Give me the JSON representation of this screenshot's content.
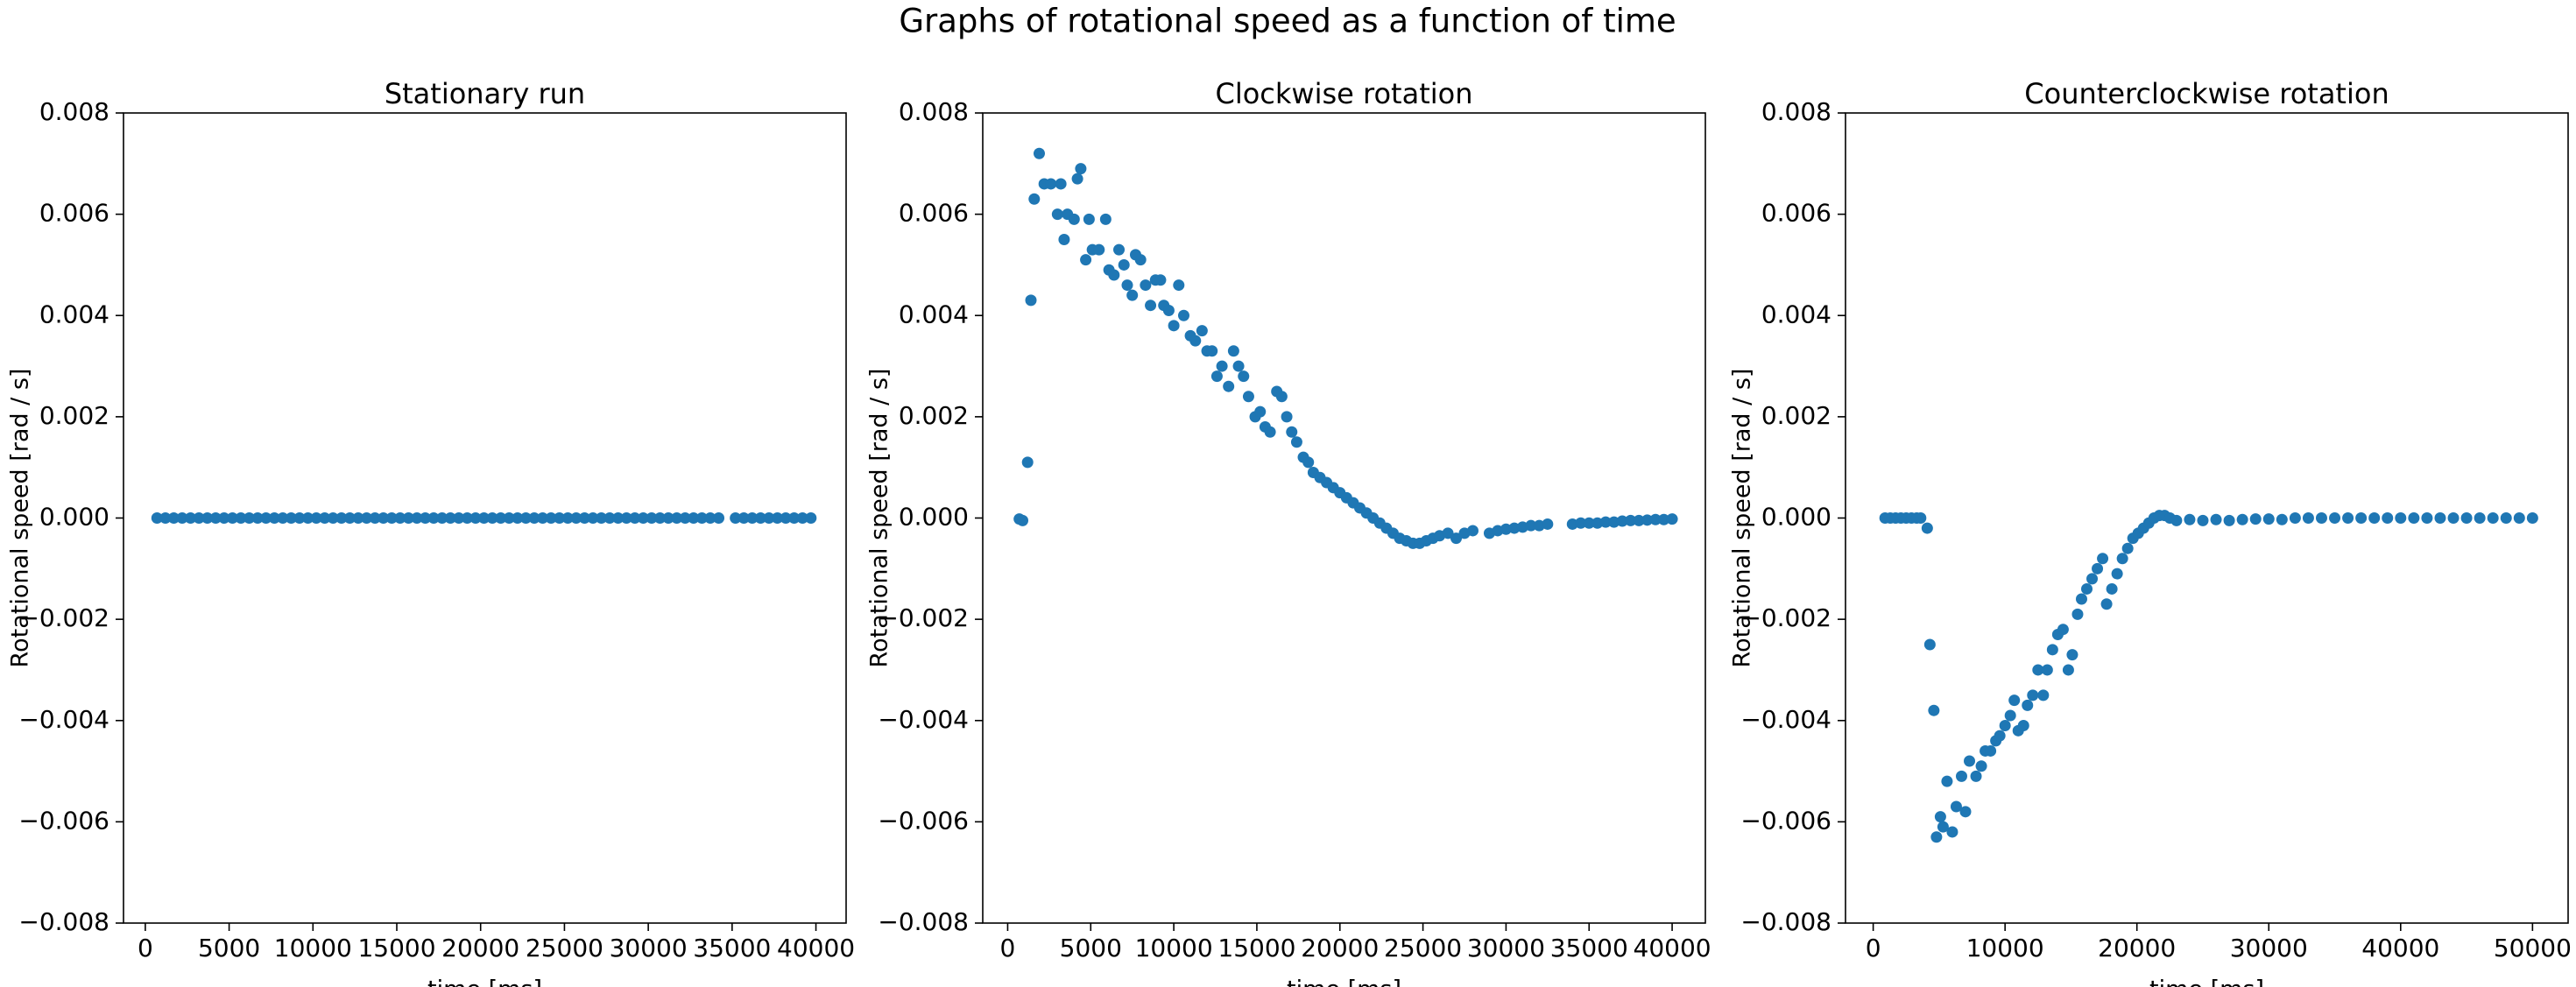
{
  "title": "Graphs of rotational speed as a function of time",
  "chart_data": [
    {
      "type": "scatter",
      "title": "Stationary run",
      "x_label": "time [ms]",
      "y_label": "Rotational speed [rad / s]",
      "color": "#1f77b4",
      "x": [
        700,
        1200,
        1700,
        2200,
        2700,
        3200,
        3700,
        4200,
        4700,
        5200,
        5700,
        6200,
        6700,
        7200,
        7700,
        8200,
        8700,
        9200,
        9700,
        10200,
        10700,
        11200,
        11700,
        12200,
        12700,
        13200,
        13700,
        14200,
        14700,
        15200,
        15700,
        16200,
        16700,
        17200,
        17700,
        18200,
        18700,
        19200,
        19700,
        20200,
        20700,
        21200,
        21700,
        22200,
        22700,
        23200,
        23700,
        24200,
        24700,
        25200,
        25700,
        26200,
        26700,
        27200,
        27700,
        28200,
        28700,
        29200,
        29700,
        30200,
        30700,
        31200,
        31700,
        32200,
        32700,
        33200,
        33700,
        34200,
        35200,
        35700,
        36200,
        36700,
        37200,
        37700,
        38200,
        38700,
        39200,
        39700
      ],
      "values": [
        0,
        0,
        0,
        0,
        0,
        0,
        0,
        0,
        0,
        0,
        0,
        0,
        0,
        0,
        0,
        0,
        0,
        0,
        0,
        0,
        0,
        0,
        0,
        0,
        0,
        0,
        0,
        0,
        0,
        0,
        0,
        0,
        0,
        0,
        0,
        0,
        0,
        0,
        0,
        0,
        0,
        0,
        0,
        0,
        0,
        0,
        0,
        0,
        0,
        0,
        0,
        0,
        0,
        0,
        0,
        0,
        0,
        0,
        0,
        0,
        0,
        0,
        0,
        0,
        0,
        0,
        0,
        0,
        0,
        0,
        0,
        0,
        0,
        0,
        0,
        0,
        0,
        0
      ],
      "xlim": [
        -1300,
        41800
      ],
      "xticks": [
        0,
        5000,
        10000,
        15000,
        20000,
        25000,
        30000,
        35000,
        40000
      ],
      "ylim": [
        -0.008,
        0.008
      ],
      "yticks": [
        {
          "value": -0.008,
          "label": "−0.008"
        },
        {
          "value": -0.006,
          "label": "−0.006"
        },
        {
          "value": -0.004,
          "label": "−0.004"
        },
        {
          "value": -0.002,
          "label": "−0.002"
        },
        {
          "value": 0,
          "label": "0.000"
        },
        {
          "value": 0.002,
          "label": "0.002"
        },
        {
          "value": 0.004,
          "label": "0.004"
        },
        {
          "value": 0.006,
          "label": "0.006"
        },
        {
          "value": 0.008,
          "label": "0.008"
        }
      ]
    },
    {
      "type": "scatter",
      "title": "Clockwise rotation",
      "x_label": "time [ms]",
      "y_label": "Rotational speed [rad / s]",
      "color": "#1f77b4",
      "x": [
        700,
        900,
        1200,
        1400,
        1600,
        1900,
        2200,
        2600,
        3000,
        3200,
        3400,
        3600,
        4000,
        4200,
        4400,
        4700,
        4900,
        5100,
        5500,
        5900,
        6100,
        6400,
        6700,
        7000,
        7200,
        7500,
        7700,
        8000,
        8300,
        8600,
        8900,
        9200,
        9400,
        9700,
        10000,
        10300,
        10600,
        11000,
        11300,
        11700,
        12000,
        12300,
        12600,
        12900,
        13300,
        13600,
        13900,
        14200,
        14500,
        14900,
        15200,
        15500,
        15800,
        16200,
        16500,
        16800,
        17100,
        17400,
        17800,
        18100,
        18400,
        18800,
        19200,
        19600,
        20000,
        20400,
        20800,
        21200,
        21600,
        22000,
        22400,
        22800,
        23200,
        23600,
        24000,
        24400,
        24800,
        25200,
        25600,
        26000,
        26500,
        27000,
        27500,
        28000,
        29000,
        29500,
        30000,
        30500,
        31000,
        31500,
        32000,
        32500,
        34000,
        34500,
        35000,
        35500,
        36000,
        36500,
        37000,
        37500,
        38000,
        38500,
        39000,
        39500,
        40000
      ],
      "values": [
        -2e-05,
        -5e-05,
        0.0011,
        0.0043,
        0.0063,
        0.0072,
        0.0066,
        0.0066,
        0.006,
        0.0066,
        0.0055,
        0.006,
        0.0059,
        0.0067,
        0.0069,
        0.0051,
        0.0059,
        0.0053,
        0.0053,
        0.0059,
        0.0049,
        0.0048,
        0.0053,
        0.005,
        0.0046,
        0.0044,
        0.0052,
        0.0051,
        0.0046,
        0.0042,
        0.0047,
        0.0047,
        0.0042,
        0.0041,
        0.0038,
        0.0046,
        0.004,
        0.0036,
        0.0035,
        0.0037,
        0.0033,
        0.0033,
        0.0028,
        0.003,
        0.0026,
        0.0033,
        0.003,
        0.0028,
        0.0024,
        0.002,
        0.0021,
        0.0018,
        0.0017,
        0.0025,
        0.0024,
        0.002,
        0.0017,
        0.0015,
        0.0012,
        0.0011,
        0.0009,
        0.0008,
        0.0007,
        0.0006,
        0.0005,
        0.0004,
        0.0003,
        0.0002,
        0.0001,
        0,
        -0.0001,
        -0.0002,
        -0.0003,
        -0.0004,
        -0.00045,
        -0.0005,
        -0.0005,
        -0.00045,
        -0.0004,
        -0.00035,
        -0.0003,
        -0.0004,
        -0.0003,
        -0.00025,
        -0.0003,
        -0.00025,
        -0.00022,
        -0.0002,
        -0.00018,
        -0.00015,
        -0.00015,
        -0.00012,
        -0.00012,
        -0.0001,
        -0.0001,
        -0.0001,
        -8e-05,
        -8e-05,
        -6e-05,
        -5e-05,
        -5e-05,
        -4e-05,
        -3e-05,
        -3e-05,
        -2e-05
      ],
      "xlim": [
        -1500,
        42000
      ],
      "xticks": [
        0,
        5000,
        10000,
        15000,
        20000,
        25000,
        30000,
        35000,
        40000
      ],
      "ylim": [
        -0.008,
        0.008
      ],
      "yticks": [
        {
          "value": -0.008,
          "label": "−0.008"
        },
        {
          "value": -0.006,
          "label": "−0.006"
        },
        {
          "value": -0.004,
          "label": "−0.004"
        },
        {
          "value": -0.002,
          "label": "−0.002"
        },
        {
          "value": 0,
          "label": "0.000"
        },
        {
          "value": 0.002,
          "label": "0.002"
        },
        {
          "value": 0.004,
          "label": "0.004"
        },
        {
          "value": 0.006,
          "label": "0.006"
        },
        {
          "value": 0.008,
          "label": "0.008"
        }
      ]
    },
    {
      "type": "scatter",
      "title": "Counterclockwise rotation",
      "x_label": "time [ms]",
      "y_label": "Rotational speed [rad / s]",
      "color": "#1f77b4",
      "x": [
        900,
        1300,
        1700,
        2100,
        2500,
        2900,
        3300,
        3600,
        4100,
        4300,
        4600,
        4800,
        5100,
        5300,
        5600,
        6000,
        6300,
        6700,
        7000,
        7300,
        7800,
        8200,
        8500,
        8900,
        9300,
        9600,
        10000,
        10400,
        10700,
        11000,
        11400,
        11700,
        12100,
        12500,
        12900,
        13200,
        13600,
        14000,
        14400,
        14800,
        15100,
        15500,
        15800,
        16200,
        16600,
        17000,
        17400,
        17700,
        18100,
        18500,
        18900,
        19300,
        19700,
        20100,
        20500,
        20900,
        21300,
        21700,
        22100,
        22500,
        23000,
        24000,
        25000,
        26000,
        27000,
        28000,
        29000,
        30000,
        31000,
        32000,
        33000,
        34000,
        35000,
        36000,
        37000,
        38000,
        39000,
        40000,
        41000,
        42000,
        43000,
        44000,
        45000,
        46000,
        47000,
        48000,
        49000,
        50000
      ],
      "values": [
        0,
        0,
        0,
        0,
        0,
        0,
        0,
        0,
        -0.0002,
        -0.0025,
        -0.0038,
        -0.0063,
        -0.0059,
        -0.0061,
        -0.0052,
        -0.0062,
        -0.0057,
        -0.0051,
        -0.0058,
        -0.0048,
        -0.0051,
        -0.0049,
        -0.0046,
        -0.0046,
        -0.0044,
        -0.0043,
        -0.0041,
        -0.0039,
        -0.0036,
        -0.0042,
        -0.0041,
        -0.0037,
        -0.0035,
        -0.003,
        -0.0035,
        -0.003,
        -0.0026,
        -0.0023,
        -0.0022,
        -0.003,
        -0.0027,
        -0.0019,
        -0.0016,
        -0.0014,
        -0.0012,
        -0.001,
        -0.0008,
        -0.0017,
        -0.0014,
        -0.0011,
        -0.0008,
        -0.0006,
        -0.0004,
        -0.0003,
        -0.0002,
        -0.0001,
        0,
        5e-05,
        5e-05,
        0,
        -5e-05,
        -3e-05,
        -5e-05,
        -3e-05,
        -5e-05,
        -3e-05,
        -2e-05,
        -2e-05,
        -3e-05,
        0,
        0,
        0,
        0,
        0,
        0,
        0,
        0,
        0,
        0,
        0,
        0,
        0,
        0,
        0,
        0,
        0,
        0,
        0
      ],
      "xlim": [
        -2100,
        52700
      ],
      "xticks": [
        0,
        10000,
        20000,
        30000,
        40000,
        50000
      ],
      "ylim": [
        -0.008,
        0.008
      ],
      "yticks": [
        {
          "value": -0.008,
          "label": "−0.008"
        },
        {
          "value": -0.006,
          "label": "−0.006"
        },
        {
          "value": -0.004,
          "label": "−0.004"
        },
        {
          "value": -0.002,
          "label": "−0.002"
        },
        {
          "value": 0,
          "label": "0.000"
        },
        {
          "value": 0.002,
          "label": "0.002"
        },
        {
          "value": 0.004,
          "label": "0.004"
        },
        {
          "value": 0.006,
          "label": "0.006"
        },
        {
          "value": 0.008,
          "label": "0.008"
        }
      ]
    }
  ]
}
